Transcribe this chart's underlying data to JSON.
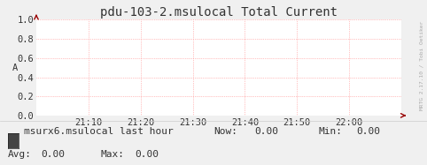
{
  "title": "pdu-103-2.msulocal Total Current",
  "ylabel": "A",
  "ylim": [
    0.0,
    1.0
  ],
  "yticks": [
    0.0,
    0.2,
    0.4,
    0.6,
    0.8,
    1.0
  ],
  "xtick_labels": [
    "21:10",
    "21:20",
    "21:30",
    "21:40",
    "21:50",
    "22:00"
  ],
  "bg_color": "#f0f0f0",
  "plot_bg_color": "#ffffff",
  "grid_color": "#ff8888",
  "title_color": "#333333",
  "tick_color": "#333333",
  "font_family": "DejaVu Sans Mono",
  "legend_label": "msurx6.msulocal last hour",
  "legend_box_color": "#444444",
  "title_fontsize": 10,
  "tick_fontsize": 7.5,
  "legend_fontsize": 8,
  "right_label": "MRTG 2.17.10 / Tobi Oetiker",
  "arrow_color": "#990000",
  "line_color": "#00002a"
}
